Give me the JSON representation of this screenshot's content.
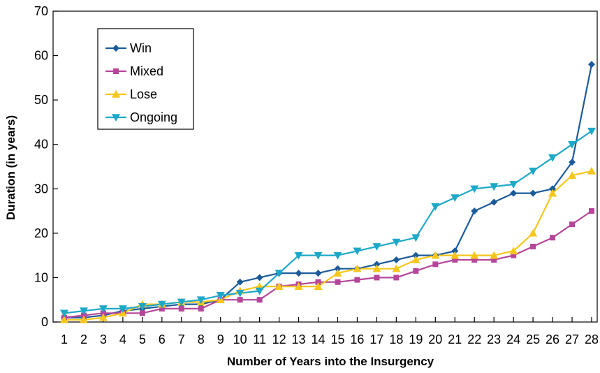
{
  "chart_data": {
    "type": "line",
    "title": "",
    "xlabel": "Number of Years into the Insurgency",
    "ylabel": "Duration (in years)",
    "x": [
      1,
      2,
      3,
      4,
      5,
      6,
      7,
      8,
      9,
      10,
      11,
      12,
      13,
      14,
      15,
      16,
      17,
      18,
      19,
      20,
      21,
      22,
      23,
      24,
      25,
      26,
      27,
      28
    ],
    "xlim": [
      1,
      28
    ],
    "ylim": [
      0,
      70
    ],
    "yticks": [
      0,
      10,
      20,
      30,
      40,
      50,
      60,
      70
    ],
    "grid": false,
    "legend_position": "top-left",
    "series": [
      {
        "name": "Win",
        "color": "#1c5b9a",
        "marker": "diamond",
        "values": [
          1,
          1,
          1.5,
          2.5,
          3,
          3.5,
          4,
          4,
          5,
          9,
          10,
          11,
          11,
          11,
          12,
          12,
          13,
          14,
          15,
          15,
          16,
          25,
          27,
          29,
          29,
          30,
          36,
          58
        ]
      },
      {
        "name": "Mixed",
        "color": "#b5469a",
        "marker": "square",
        "values": [
          1,
          1.5,
          2,
          2,
          2,
          3,
          3,
          3,
          5,
          5,
          5,
          8,
          8.5,
          9,
          9,
          9.5,
          10,
          10,
          11.5,
          13,
          14,
          14,
          14,
          15,
          17,
          19,
          22,
          25
        ]
      },
      {
        "name": "Lose",
        "color": "#f6c61a",
        "marker": "triangle-up",
        "values": [
          0.5,
          0.5,
          1,
          2,
          4,
          4,
          4.5,
          4.5,
          5,
          7,
          8,
          8,
          8,
          8,
          11,
          12,
          12,
          12,
          14,
          15,
          15,
          15,
          15,
          16,
          20,
          29,
          33,
          34
        ]
      },
      {
        "name": "Ongoing",
        "color": "#1ea8c8",
        "marker": "triangle-down",
        "values": [
          2,
          2.5,
          3,
          3,
          3.5,
          4,
          4.5,
          5,
          6,
          6.5,
          7,
          11,
          15,
          15,
          15,
          16,
          17,
          18,
          19,
          26,
          28,
          30,
          30.5,
          31,
          34,
          37,
          40,
          43
        ]
      }
    ]
  }
}
